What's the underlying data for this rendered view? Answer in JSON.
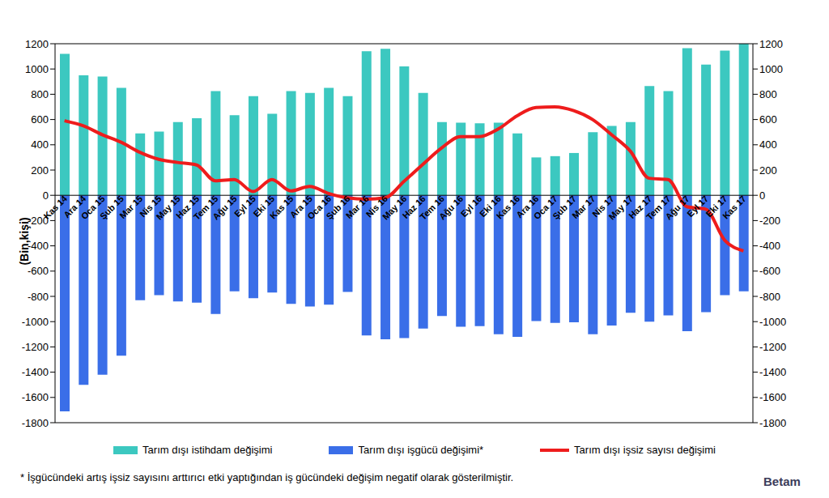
{
  "chart_data": {
    "type": "bar",
    "y_label": "(Bin,kişi)",
    "footnote": "* İşgücündeki artış işsiz sayısını arttırıcı etki yaptığından iş gücündeki değişim negatif olarak gösterilmiştir.",
    "logo_text": "Betam",
    "categories": [
      "Kas 14",
      "Ara 14",
      "Oca 15",
      "Şub 15",
      "Mar 15",
      "Nis 15",
      "May 15",
      "Haz 15",
      "Tem 15",
      "Ağu 15",
      "Eyl 15",
      "Eki 15",
      "Kas 15",
      "Ara 15",
      "Oca 16",
      "Şub 16",
      "Mar 16",
      "Nis 16",
      "May 16",
      "Haz 16",
      "Tem 16",
      "Ağu 16",
      "Eyl 16",
      "Eki 16",
      "Kas 16",
      "Ara 16",
      "Oca 17",
      "Şub 17",
      "Mar 17",
      "Nis 17",
      "May 17",
      "Haz 17",
      "Tem 17",
      "Ağu 17",
      "Eyl 17",
      "Eki 17",
      "Kas 17"
    ],
    "series": [
      {
        "name": "Tarım dışı istihdam değişimi",
        "type": "bar",
        "color": "#3cc8c0",
        "values": [
          1120,
          950,
          940,
          850,
          490,
          505,
          580,
          610,
          825,
          635,
          785,
          645,
          825,
          810,
          850,
          785,
          1140,
          1160,
          1020,
          810,
          580,
          575,
          570,
          575,
          490,
          300,
          310,
          335,
          500,
          550,
          580,
          865,
          825,
          1165,
          1035,
          1145,
          1200
        ]
      },
      {
        "name": "Tarım dışı işgücü değişimi*",
        "type": "bar",
        "color": "#3a6ee8",
        "values": [
          -1710,
          -1500,
          -1420,
          -1270,
          -830,
          -790,
          -840,
          -850,
          -940,
          -760,
          -815,
          -770,
          -860,
          -880,
          -865,
          -765,
          -1110,
          -1140,
          -1130,
          -1055,
          -955,
          -1040,
          -1035,
          -1100,
          -1120,
          -995,
          -1010,
          -1005,
          -1100,
          -1030,
          -930,
          -1000,
          -950,
          -1075,
          -925,
          -790,
          -760
        ]
      },
      {
        "name": "Tarım dışı işsiz sayısı değişimi",
        "type": "line",
        "axis": "y2",
        "color": "#ee1c1c",
        "values": [
          590,
          550,
          480,
          420,
          340,
          285,
          260,
          240,
          115,
          125,
          30,
          125,
          35,
          70,
          15,
          -20,
          -30,
          -20,
          110,
          245,
          375,
          465,
          465,
          525,
          630,
          695,
          700,
          670,
          600,
          480,
          350,
          135,
          125,
          -90,
          -110,
          -355,
          -440
        ]
      }
    ],
    "stacked": true,
    "grid": false,
    "ylim": [
      -1800,
      1200
    ],
    "yticks": [
      -1800,
      -1600,
      -1400,
      -1200,
      -1000,
      -800,
      -600,
      -400,
      -200,
      0,
      200,
      400,
      600,
      800,
      1000,
      1200
    ],
    "y2lim": [
      -1800,
      1200
    ],
    "y2ticks": [
      -1800,
      -1600,
      -1400,
      -1200,
      -1000,
      -800,
      -600,
      -400,
      -200,
      0,
      200,
      400,
      600,
      800,
      1000,
      1200
    ]
  }
}
